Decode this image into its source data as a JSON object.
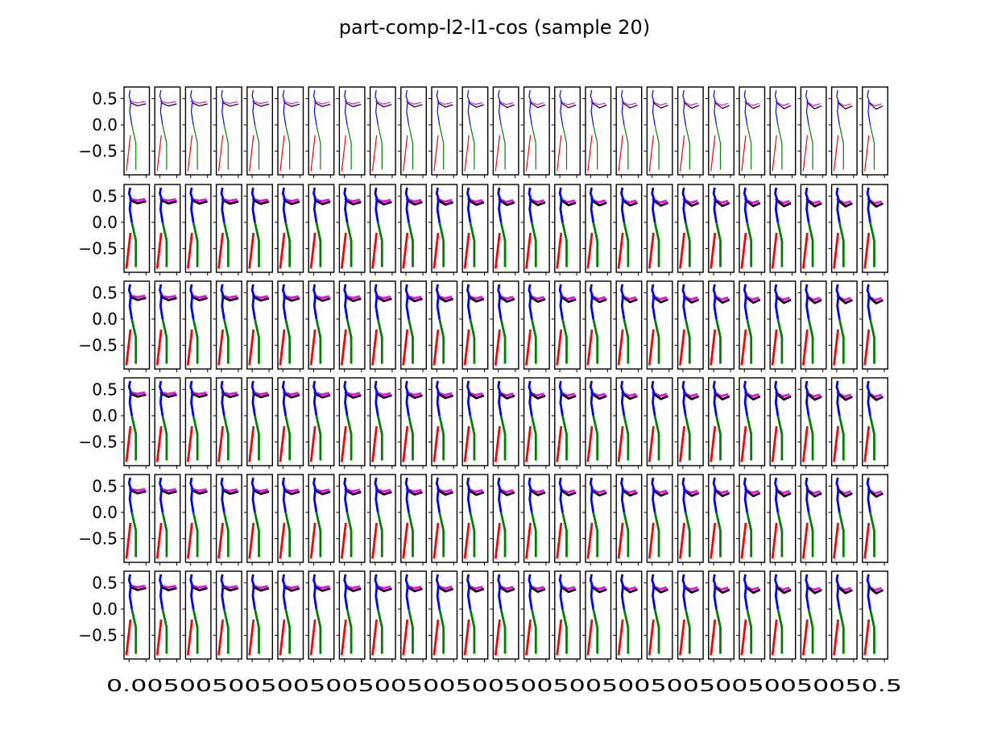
{
  "chart_data": {
    "type": "small-multiples-line",
    "title": "part-comp-l2-l1-cos (sample 20)",
    "rows": 6,
    "cols": 25,
    "grid": false,
    "xlim": [
      -0.15,
      0.6
    ],
    "ylim": [
      -0.95,
      0.72
    ],
    "y_ticks": [
      0.5,
      0.0,
      -0.5
    ],
    "y_tick_labels": [
      "0.5",
      "0.0",
      "−0.5"
    ],
    "x_tick_values": [
      0.0,
      0.5
    ],
    "x_tick_labels_printed": "0.0050050050050050050050050050050050050050050050.5",
    "limb_colors": {
      "spine": "#0000ff",
      "arm_back": "#ff00ff",
      "arm_front": "#000000",
      "leg_back": "#008000",
      "leg_front": "#ff0000"
    },
    "bend_start": 0.3,
    "bend_end": 1.0,
    "row_line_widths": [
      1.2,
      2.8,
      2.8,
      2.8,
      2.8,
      2.8
    ]
  }
}
